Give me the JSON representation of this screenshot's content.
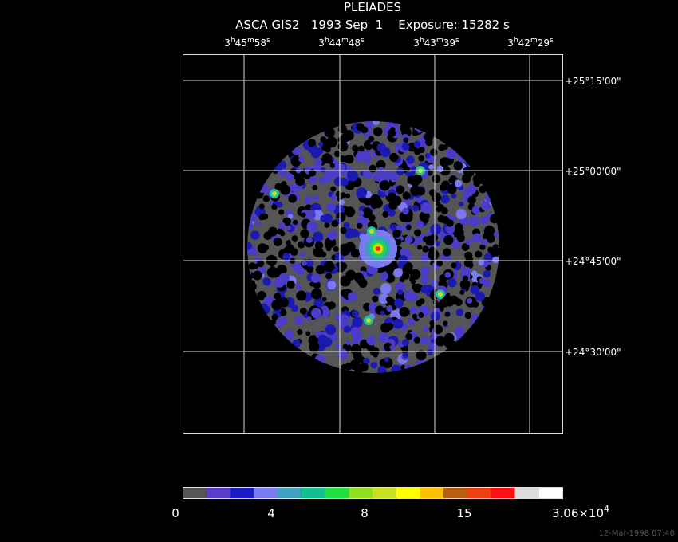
{
  "header": {
    "title": "PLEIADES",
    "subtitle": "ASCA GIS2   1993 Sep  1    Exposure: 15282 s"
  },
  "ra_labels": [
    [
      "3",
      "h",
      "45",
      "m",
      "58",
      "s"
    ],
    [
      "3",
      "h",
      "44",
      "m",
      "48",
      "s"
    ],
    [
      "3",
      "h",
      "43",
      "m",
      "39",
      "s"
    ],
    [
      "3",
      "h",
      "42",
      "m",
      "29",
      "s"
    ]
  ],
  "dec_labels": [
    "+25°15'00\"",
    "+25°00'00\"",
    "+24°45'00\"",
    "+24°30'00\""
  ],
  "colorbar": {
    "labels": [
      "0",
      "4",
      "8",
      "15"
    ],
    "max_label": [
      "3.06×10",
      "4"
    ]
  },
  "footer": "12-Mar-1998 07:40"
}
